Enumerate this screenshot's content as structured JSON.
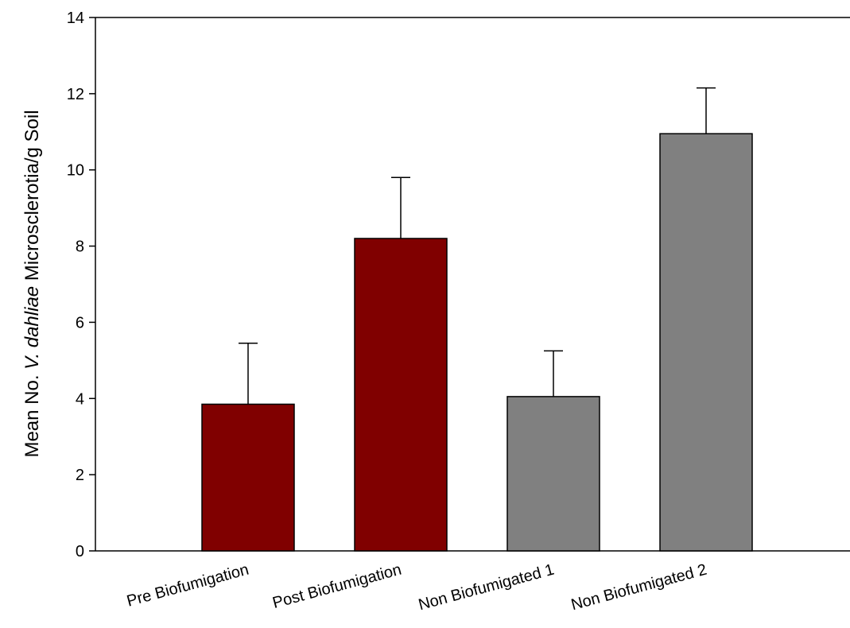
{
  "chart_data": {
    "type": "bar",
    "title": "",
    "xlabel": "",
    "ylabel": {
      "prefix": "Mean No. ",
      "italic": "V. dahliae",
      "suffix": " Microsclerotia/g Soil"
    },
    "categories": [
      "Pre Biofumigation",
      "Post Biofumigation",
      "Non Biofumigated 1",
      "Non Biofumigated 2"
    ],
    "values": [
      3.85,
      8.2,
      4.05,
      10.95
    ],
    "errors": [
      1.6,
      1.6,
      1.2,
      1.2
    ],
    "bar_colors": [
      "#800000",
      "#800000",
      "#808080",
      "#808080"
    ],
    "ylim": [
      0,
      14
    ],
    "yticks": [
      0,
      2,
      4,
      6,
      8,
      10,
      12,
      14
    ],
    "grid": false,
    "legend": "none"
  }
}
